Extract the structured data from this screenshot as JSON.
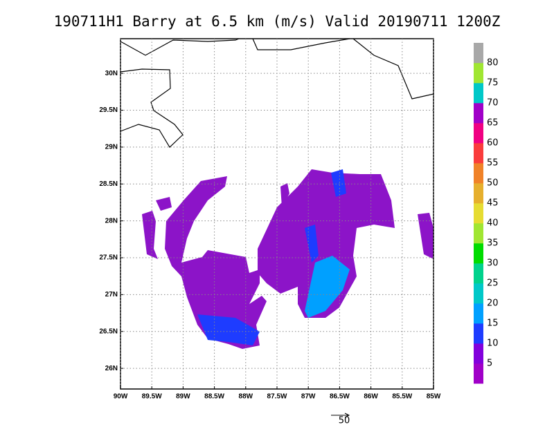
{
  "title": "190711H1 Barry at 6.5 km (m/s) Valid 20190711 1200Z",
  "map": {
    "xlim": [
      -90,
      -85
    ],
    "ylim": [
      25.72,
      30.47
    ],
    "xticks": [
      {
        "value": -90,
        "label": "90W"
      },
      {
        "value": -89.5,
        "label": "89.5W"
      },
      {
        "value": -89,
        "label": "89W"
      },
      {
        "value": -88.5,
        "label": "88.5W"
      },
      {
        "value": -88,
        "label": "88W"
      },
      {
        "value": -87.5,
        "label": "87.5W"
      },
      {
        "value": -87,
        "label": "87W"
      },
      {
        "value": -86.5,
        "label": "86.5W"
      },
      {
        "value": -86,
        "label": "86W"
      },
      {
        "value": -85.5,
        "label": "85.5W"
      },
      {
        "value": -85,
        "label": "85W"
      }
    ],
    "yticks": [
      {
        "value": 26,
        "label": "26N"
      },
      {
        "value": 26.5,
        "label": "26.5N"
      },
      {
        "value": 27,
        "label": "27N"
      },
      {
        "value": 27.5,
        "label": "27.5N"
      },
      {
        "value": 28,
        "label": "28N"
      },
      {
        "value": 28.5,
        "label": "28.5N"
      },
      {
        "value": 29,
        "label": "29N"
      },
      {
        "value": 29.5,
        "label": "29.5N"
      },
      {
        "value": 30,
        "label": "30N"
      }
    ],
    "grid": true
  },
  "colorbar": {
    "labels": [
      5,
      10,
      15,
      20,
      25,
      30,
      35,
      40,
      45,
      50,
      55,
      60,
      65,
      70,
      75,
      80
    ],
    "colors": [
      "#a000c8",
      "#8200dc",
      "#1e3cff",
      "#00a0ff",
      "#00c8c8",
      "#00d28c",
      "#00dc00",
      "#a0e632",
      "#e6dc32",
      "#e6af2d",
      "#f08228",
      "#fa3c3c",
      "#f00082",
      "#a000c8",
      "#00c8c8",
      "#a0e632",
      "#a8a8a8"
    ]
  },
  "reference_vector": "50"
}
